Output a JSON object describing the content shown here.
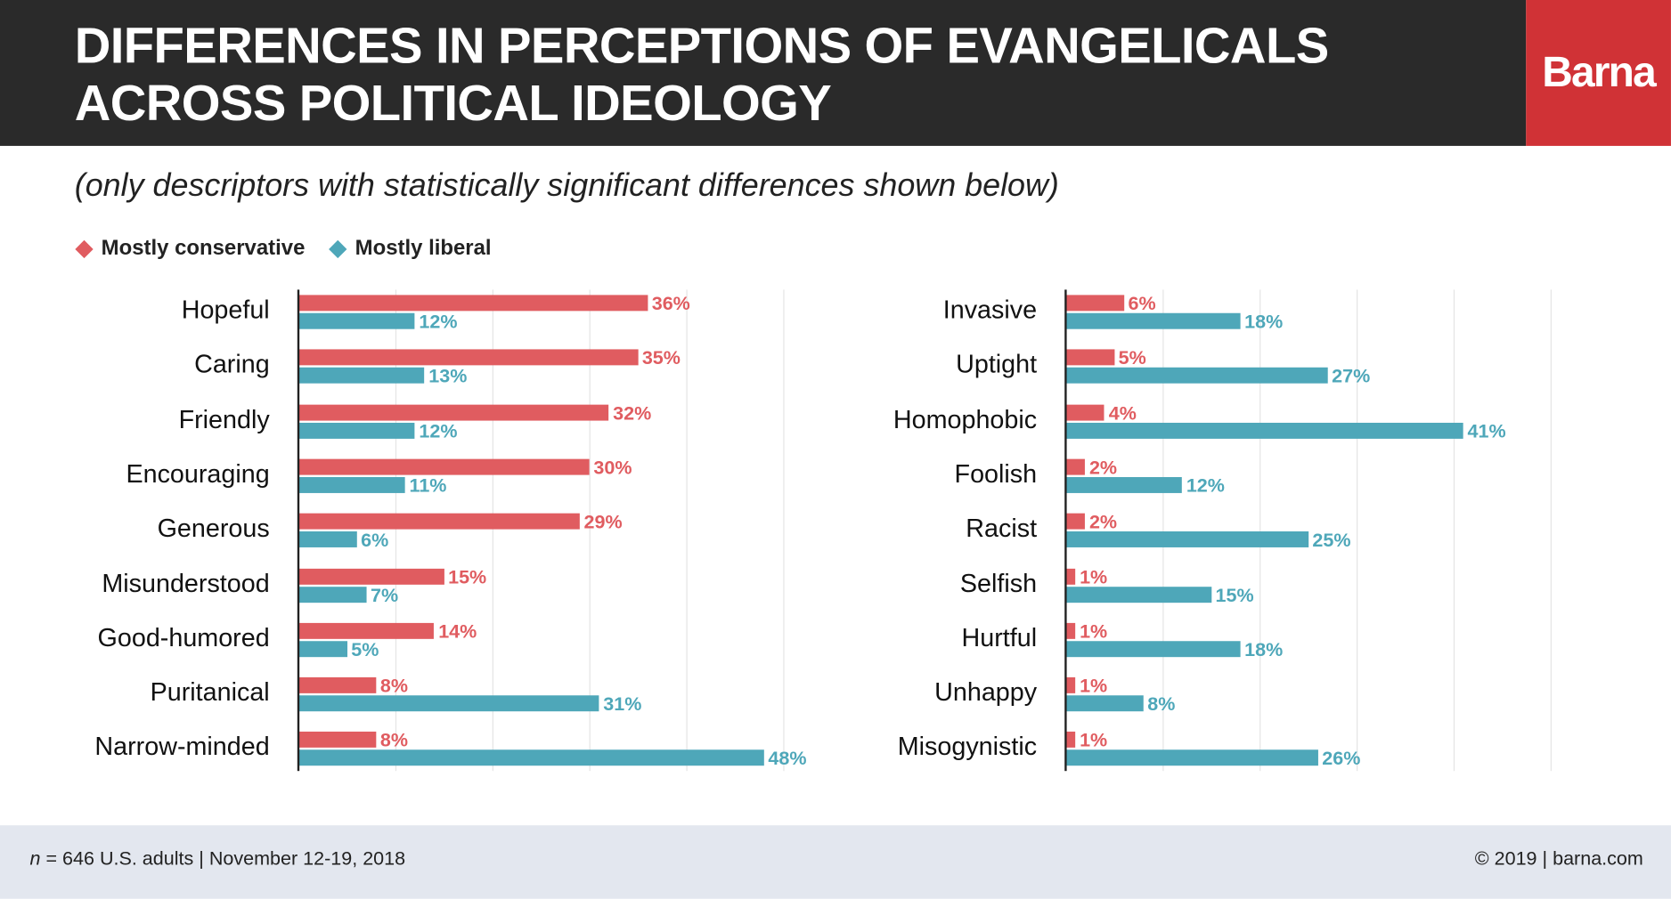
{
  "header": {
    "title_line1": "DIFFERENCES IN PERCEPTIONS OF EVANGELICALS",
    "title_line2": "ACROSS POLITICAL IDEOLOGY",
    "brand": "Barna"
  },
  "subtitle": "(only descriptors with statistically significant differences shown below)",
  "footer": {
    "n_label": "n",
    "sample": " = 646 U.S. adults | November 12-19, 2018",
    "copyright": "© 2019 | barna.com"
  },
  "colors": {
    "conservative": "#e05c60",
    "liberal": "#4ea7b9",
    "header_bg": "#2a2a2a",
    "brand_bg": "#d03236"
  },
  "chart_data": [
    {
      "type": "bar",
      "orientation": "horizontal",
      "xlim": [
        0,
        50
      ],
      "grid": true,
      "legend_placement": "top-left",
      "categories": [
        "Hopeful",
        "Caring",
        "Friendly",
        "Encouraging",
        "Generous",
        "Misunderstood",
        "Good-humored",
        "Puritanical",
        "Narrow-minded"
      ],
      "series": [
        {
          "name": "Mostly conservative",
          "values": [
            36,
            35,
            32,
            30,
            29,
            15,
            14,
            8,
            8
          ]
        },
        {
          "name": "Mostly liberal",
          "values": [
            12,
            13,
            12,
            11,
            6,
            7,
            5,
            31,
            48
          ]
        }
      ]
    },
    {
      "type": "bar",
      "orientation": "horizontal",
      "xlim": [
        0,
        50
      ],
      "grid": true,
      "categories": [
        "Invasive",
        "Uptight",
        "Homophobic",
        "Foolish",
        "Racist",
        "Selfish",
        "Hurtful",
        "Unhappy",
        "Misogynistic"
      ],
      "series": [
        {
          "name": "Mostly conservative",
          "values": [
            6,
            5,
            4,
            2,
            2,
            1,
            1,
            1,
            1
          ]
        },
        {
          "name": "Mostly liberal",
          "values": [
            18,
            27,
            41,
            12,
            25,
            15,
            18,
            8,
            26
          ]
        }
      ]
    }
  ]
}
